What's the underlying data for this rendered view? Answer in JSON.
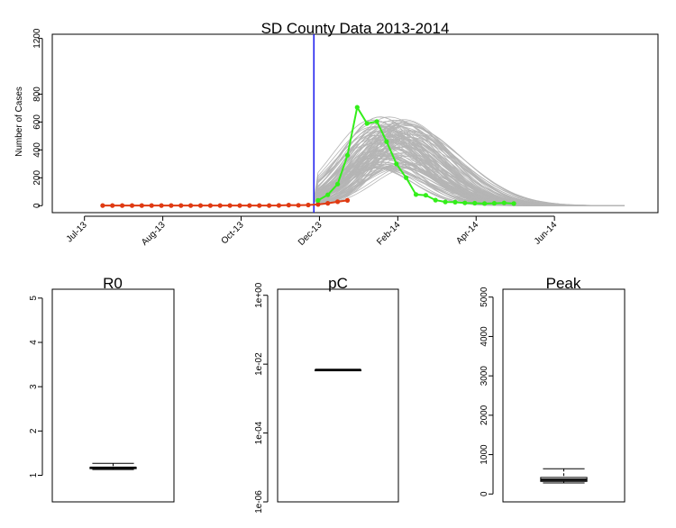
{
  "chart_data": [
    {
      "type": "line",
      "title": "SD County Data 2013-2014",
      "xlabel": "",
      "ylabel": "Number of Cases",
      "ylim": [
        -50,
        1230
      ],
      "yticks": [
        0,
        200,
        400,
        600,
        800,
        1200
      ],
      "xlim": [
        "2013-06-08",
        "2014-08-15"
      ],
      "xticks": [
        {
          "date": "2013-07-01",
          "label": "Jul-13"
        },
        {
          "date": "2013-08-26",
          "label": "Aug-13"
        },
        {
          "date": "2013-10-21",
          "label": "Oct-13"
        },
        {
          "date": "2013-12-16",
          "label": "Dec-13"
        },
        {
          "date": "2014-02-10",
          "label": "Feb-14"
        },
        {
          "date": "2014-04-07",
          "label": "Apr-14"
        },
        {
          "date": "2014-06-02",
          "label": "Jun-14"
        }
      ],
      "vertical_line": {
        "date": "2013-12-12",
        "color": "#1a1aee"
      },
      "series": [
        {
          "role": "observed-before-cutoff",
          "color": "#e03a12",
          "start": "2013-07-14",
          "step_days": 7,
          "values": [
            1,
            1,
            1,
            1,
            1,
            1,
            1,
            1,
            1,
            1,
            1,
            1,
            1,
            1,
            1,
            1,
            1,
            1,
            2,
            4,
            3,
            5,
            9,
            17,
            28,
            38
          ]
        },
        {
          "role": "observed-after-cutoff",
          "color": "#33ee1a",
          "start": "2013-12-15",
          "step_days": 7,
          "values": [
            38,
            78,
            155,
            362,
            706,
            590,
            604,
            460,
            300,
            200,
            80,
            75,
            40,
            27,
            25,
            20,
            18,
            15,
            17,
            20,
            15
          ]
        }
      ],
      "simulations": {
        "color": "#b5b5b5",
        "count": 120,
        "start": "2013-12-12",
        "end": "2014-07-24",
        "peak_range": [
          270,
          640
        ],
        "peak_date_range": [
          "2014-01-22",
          "2014-02-20"
        ]
      },
      "grid": false,
      "legend": "none"
    },
    {
      "type": "boxplot",
      "title": "R0",
      "ylim": [
        0.4,
        5.2
      ],
      "yticks": [
        {
          "value": 1,
          "label": "1"
        },
        {
          "value": 2,
          "label": "2"
        },
        {
          "value": 3,
          "label": "3"
        },
        {
          "value": 4,
          "label": "4"
        },
        {
          "value": 5,
          "label": "5"
        }
      ],
      "box": {
        "min": 1.13,
        "q1": 1.15,
        "median": 1.17,
        "q3": 1.18,
        "max": 1.27
      }
    },
    {
      "type": "boxplot",
      "title": "pC",
      "scale": "log10",
      "ylim": [
        1e-06,
        1.5
      ],
      "yticks": [
        {
          "value": 1e-06,
          "label": "1e-06"
        },
        {
          "value": 0.0001,
          "label": "1e-04"
        },
        {
          "value": 0.01,
          "label": "1e-02"
        },
        {
          "value": 1,
          "label": "1e+00"
        }
      ],
      "box": {
        "min": 0.0068,
        "q1": 0.0068,
        "median": 0.0068,
        "q3": 0.0068,
        "max": 0.0068
      }
    },
    {
      "type": "boxplot",
      "title": "Peak",
      "ylim": [
        -200,
        5200
      ],
      "yticks": [
        {
          "value": 0,
          "label": "0"
        },
        {
          "value": 1000,
          "label": "1000"
        },
        {
          "value": 2000,
          "label": "2000"
        },
        {
          "value": 3000,
          "label": "3000"
        },
        {
          "value": 4000,
          "label": "4000"
        },
        {
          "value": 5000,
          "label": "5000"
        }
      ],
      "box": {
        "min": 280,
        "q1": 320,
        "median": 360,
        "q3": 420,
        "max": 640
      }
    }
  ]
}
